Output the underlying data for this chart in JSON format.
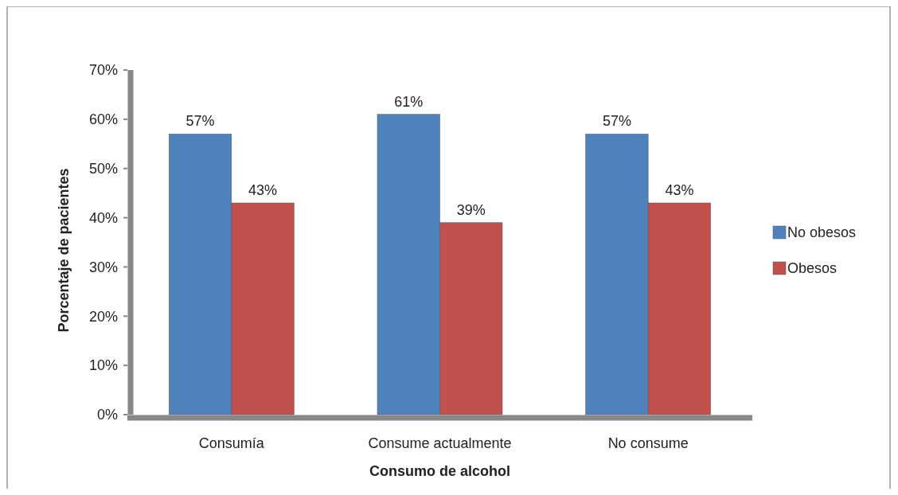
{
  "chart_data": {
    "type": "bar",
    "xlabel": "Consumo de alcohol",
    "ylabel": "Porcentaje de pacientes",
    "categories": [
      "Consumía",
      "Consume actualmente",
      "No consume"
    ],
    "series": [
      {
        "name": "No obesos",
        "color": "#4f81bd",
        "values": [
          57,
          61,
          57
        ],
        "value_labels": [
          "57%",
          "61%",
          "57%"
        ]
      },
      {
        "name": "Obesos",
        "color": "#c0504d",
        "values": [
          43,
          39,
          43
        ],
        "value_labels": [
          "43%",
          "39%",
          "43%"
        ]
      }
    ],
    "ylim": [
      0,
      70
    ],
    "yticks": [
      {
        "value": 0,
        "label": "0%"
      },
      {
        "value": 10,
        "label": "10%"
      },
      {
        "value": 20,
        "label": "20%"
      },
      {
        "value": 30,
        "label": "30%"
      },
      {
        "value": 40,
        "label": "40%"
      },
      {
        "value": 50,
        "label": "50%"
      },
      {
        "value": 60,
        "label": "60%"
      },
      {
        "value": 70,
        "label": "70%"
      }
    ],
    "grid": false,
    "legend": "right"
  }
}
